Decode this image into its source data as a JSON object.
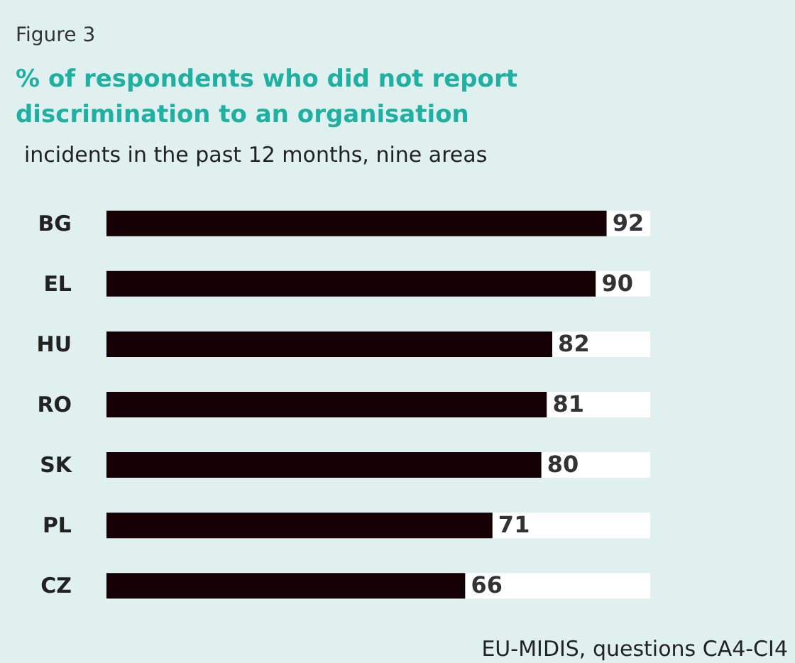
{
  "chart_data": {
    "type": "bar",
    "orientation": "horizontal",
    "stacked": true,
    "title": "% of respondents who did not report discrimination to an organisation",
    "subtitle": "incidents in the past 12 months, nine areas",
    "annotations": [
      "Figure 3",
      "EU-MIDIS, questions CA4-CI4"
    ],
    "categories": [
      "BG",
      "EL",
      "HU",
      "RO",
      "SK",
      "PL",
      "CZ"
    ],
    "series": [
      {
        "color": "#140005",
        "values": [
          92,
          90,
          82,
          81,
          80,
          71,
          66
        ],
        "value_labels": [
          "92",
          "90",
          "82",
          "81",
          "80",
          "71",
          "66"
        ]
      },
      {
        "color": "#ffffff",
        "values": [
          8,
          10,
          18,
          19,
          20,
          29,
          34
        ]
      }
    ],
    "xlim": [
      0,
      100
    ],
    "tick_labels": "y"
  }
}
